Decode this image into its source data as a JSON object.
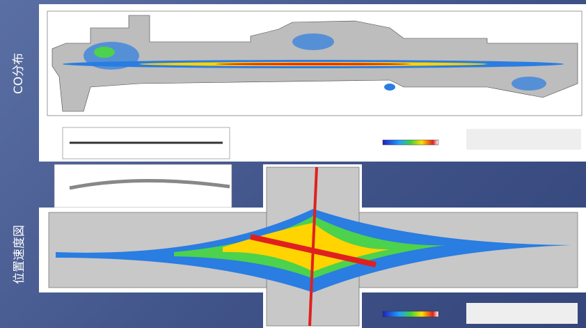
{
  "side_labels": {
    "top": "CO分布",
    "bottom": "位置速度図"
  }
}
